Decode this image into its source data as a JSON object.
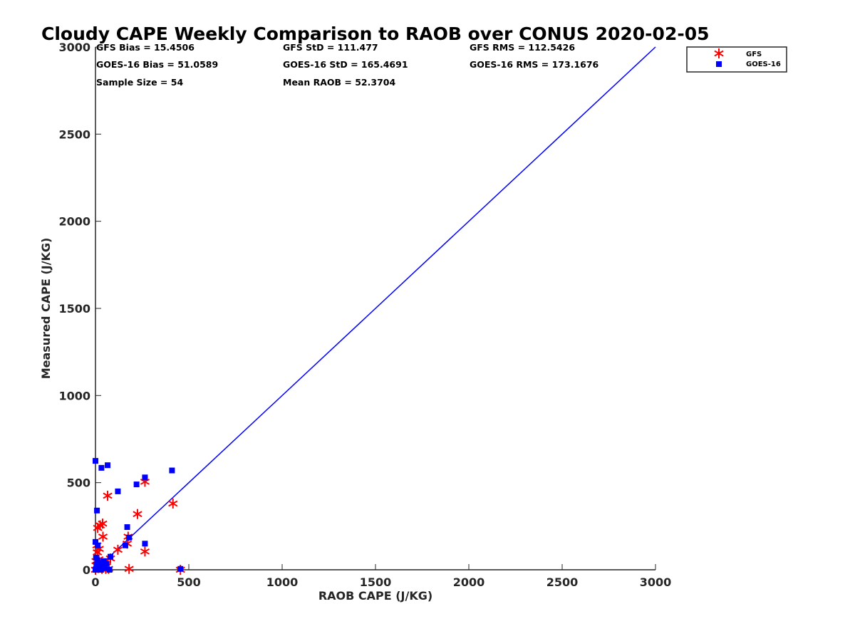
{
  "chart_data": {
    "type": "scatter",
    "title": "Cloudy CAPE Weekly Comparison to RAOB over CONUS 2020-02-05",
    "xlabel": "RAOB CAPE (J/KG)",
    "ylabel": "Measured CAPE (J/KG)",
    "xlim": [
      0,
      3000
    ],
    "ylim": [
      0,
      3000
    ],
    "xticks": [
      0,
      500,
      1000,
      1500,
      2000,
      2500,
      3000
    ],
    "yticks": [
      0,
      500,
      1000,
      1500,
      2000,
      2500,
      3000
    ],
    "grid": false,
    "legend_position": "top-right outside",
    "stats": [
      [
        "GFS Bias = 15.4506",
        "GFS StD = 111.477",
        "GFS RMS = 112.5426"
      ],
      [
        "GOES-16 Bias = 51.0589",
        "GOES-16 StD = 165.4691",
        "GOES-16 RMS = 173.1676"
      ],
      [
        "Sample Size = 54",
        "Mean RAOB = 52.3704",
        ""
      ]
    ],
    "reference_line": {
      "name": "1:1 line",
      "color": "#0000ff",
      "x": [
        0,
        3000
      ],
      "y": [
        0,
        3000
      ]
    },
    "series": [
      {
        "name": "GFS",
        "marker": "asterisk",
        "color": "#ff0000",
        "points": [
          [
            0,
            0
          ],
          [
            3,
            50
          ],
          [
            5,
            25
          ],
          [
            8,
            140
          ],
          [
            10,
            100
          ],
          [
            12,
            240
          ],
          [
            15,
            10
          ],
          [
            18,
            60
          ],
          [
            20,
            120
          ],
          [
            25,
            255
          ],
          [
            30,
            40
          ],
          [
            35,
            5
          ],
          [
            38,
            265
          ],
          [
            40,
            190
          ],
          [
            45,
            20
          ],
          [
            55,
            5
          ],
          [
            60,
            20
          ],
          [
            65,
            425
          ],
          [
            70,
            5
          ],
          [
            80,
            65
          ],
          [
            120,
            115
          ],
          [
            170,
            150
          ],
          [
            175,
            190
          ],
          [
            180,
            5
          ],
          [
            225,
            320
          ],
          [
            265,
            105
          ],
          [
            265,
            505
          ],
          [
            415,
            380
          ],
          [
            455,
            0
          ]
        ]
      },
      {
        "name": "GOES-16",
        "marker": "square",
        "color": "#0000ff",
        "points": [
          [
            0,
            625
          ],
          [
            0,
            160
          ],
          [
            0,
            0
          ],
          [
            3,
            70
          ],
          [
            5,
            30
          ],
          [
            8,
            340
          ],
          [
            10,
            55
          ],
          [
            12,
            140
          ],
          [
            15,
            10
          ],
          [
            18,
            25
          ],
          [
            20,
            40
          ],
          [
            25,
            5
          ],
          [
            30,
            0
          ],
          [
            32,
            585
          ],
          [
            35,
            20
          ],
          [
            45,
            50
          ],
          [
            50,
            10
          ],
          [
            60,
            35
          ],
          [
            65,
            600
          ],
          [
            75,
            0
          ],
          [
            80,
            75
          ],
          [
            120,
            450
          ],
          [
            160,
            140
          ],
          [
            170,
            245
          ],
          [
            180,
            185
          ],
          [
            220,
            490
          ],
          [
            265,
            530
          ],
          [
            265,
            150
          ],
          [
            410,
            570
          ],
          [
            455,
            5
          ]
        ]
      }
    ]
  }
}
